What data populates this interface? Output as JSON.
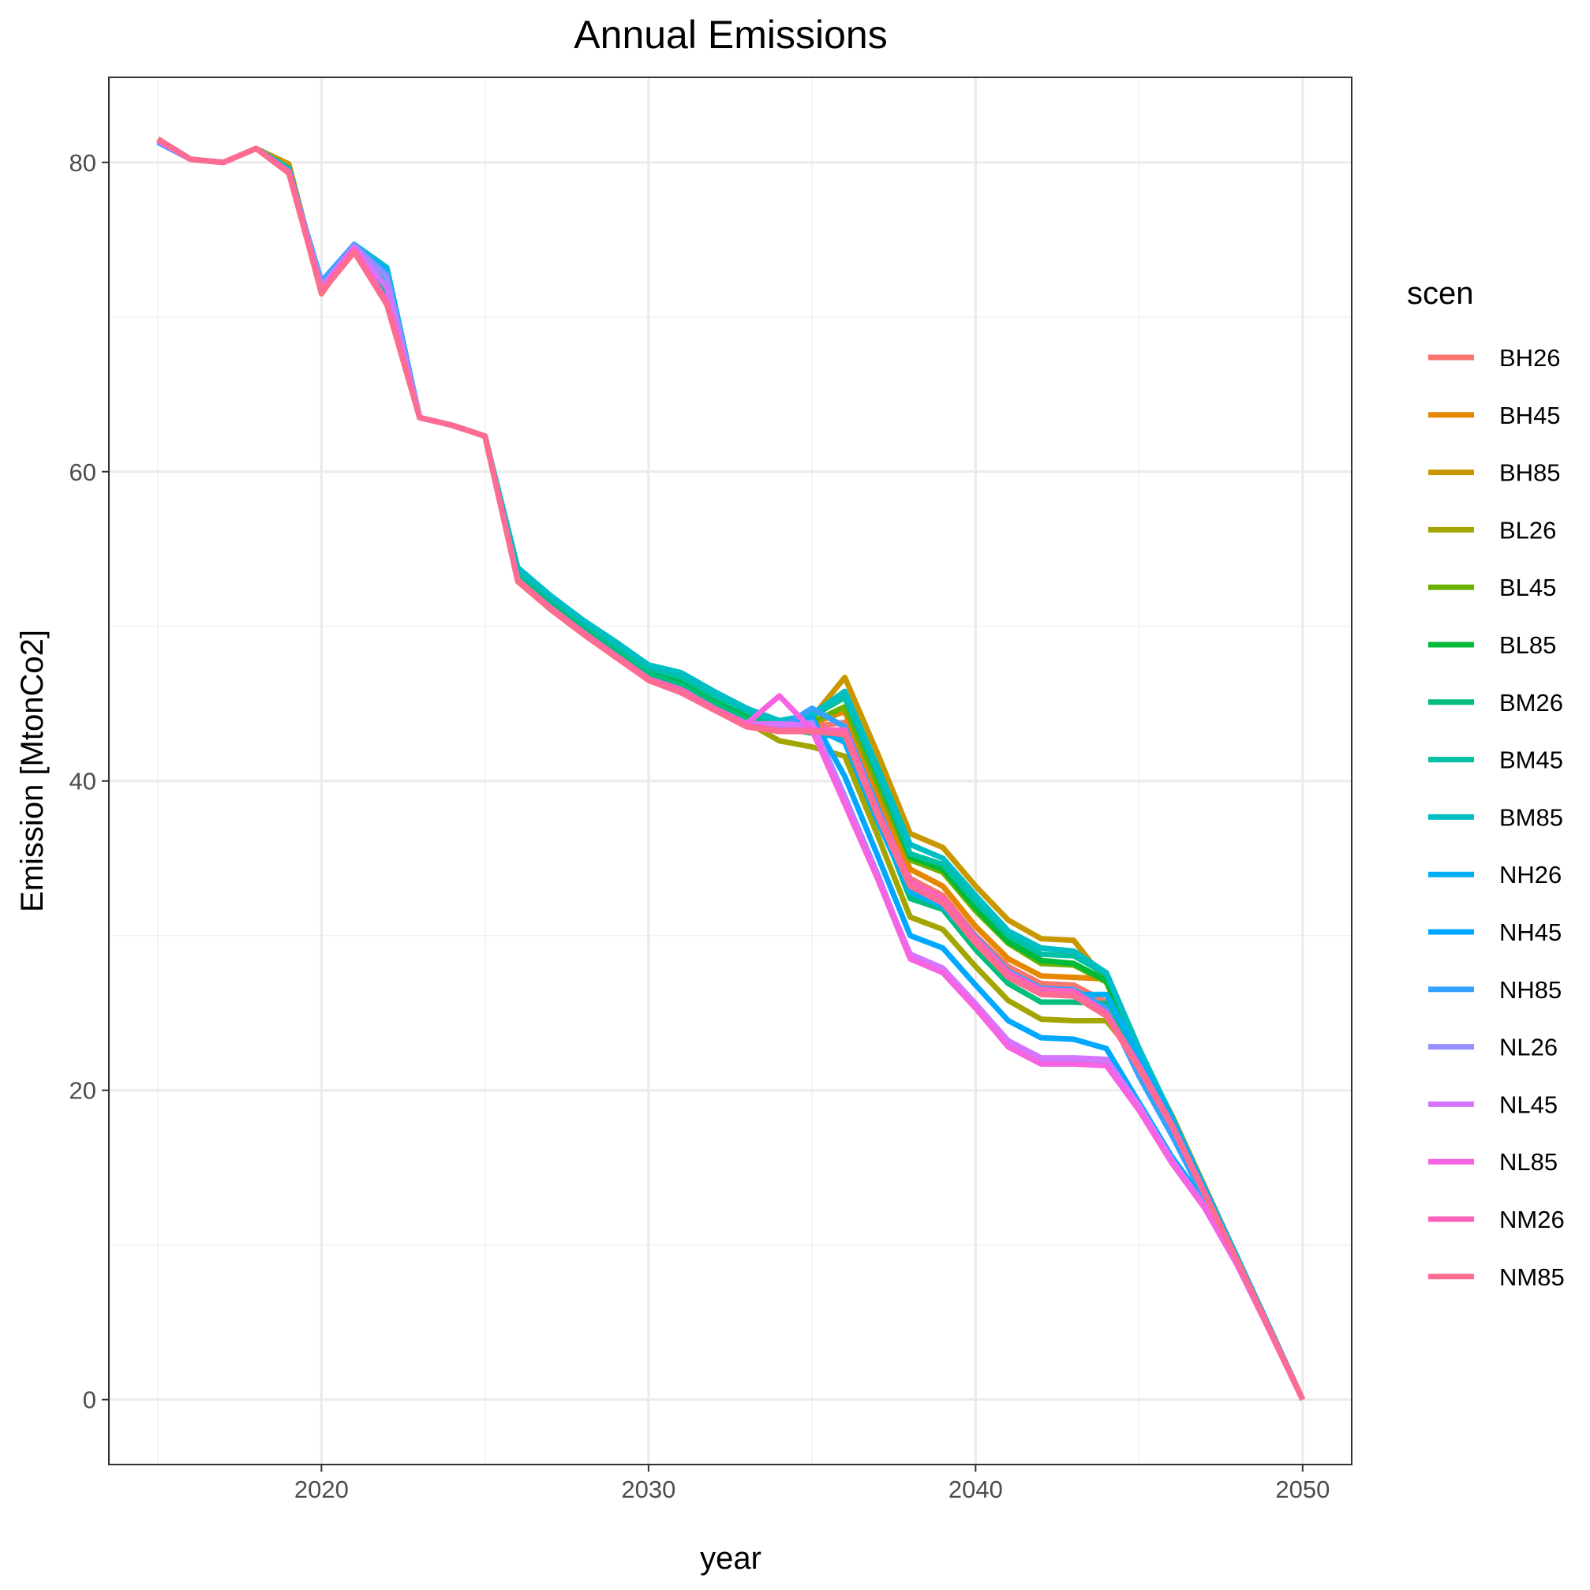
{
  "chart_data": {
    "type": "line",
    "title": "Annual Emissions",
    "xlabel": "year",
    "ylabel": "Emission [MtonCo2]",
    "xlim": [
      2013.5,
      2051.5
    ],
    "ylim": [
      -4.2,
      85.5
    ],
    "x_ticks": [
      2020,
      2030,
      2040,
      2050
    ],
    "x_tick_labels": [
      "2020",
      "2030",
      "2040",
      "2050"
    ],
    "x_minor": [
      2015,
      2025,
      2035,
      2045
    ],
    "y_ticks": [
      0,
      20,
      40,
      60,
      80
    ],
    "y_tick_labels": [
      "0",
      "20",
      "40",
      "60",
      "80"
    ],
    "y_minor": [
      10,
      30,
      50,
      70
    ],
    "grid": true,
    "legend": {
      "title": "scen",
      "position": "right"
    },
    "x": [
      2015,
      2016,
      2017,
      2018,
      2019,
      2020,
      2021,
      2022,
      2023,
      2024,
      2025,
      2026,
      2027,
      2028,
      2029,
      2030,
      2031,
      2032,
      2033,
      2034,
      2035,
      2036,
      2037,
      2038,
      2039,
      2040,
      2041,
      2042,
      2043,
      2044,
      2045,
      2046,
      2047,
      2048,
      2049,
      2050
    ],
    "series": [
      {
        "name": "BH26",
        "color": "#F8766D",
        "values": [
          81.5,
          80.2,
          80.0,
          80.9,
          79.5,
          71.5,
          74.5,
          70.8,
          63.5,
          63.0,
          62.3,
          52.9,
          51.1,
          49.5,
          48.0,
          46.6,
          45.8,
          44.6,
          43.6,
          43.2,
          43.5,
          43.8,
          38.3,
          33.7,
          32.6,
          30.0,
          28.0,
          26.9,
          26.8,
          25.7,
          22.0,
          18.1,
          13.5,
          9.2,
          4.6,
          0.0
        ]
      },
      {
        "name": "BH45",
        "color": "#E58700",
        "values": [
          81.5,
          80.2,
          80.0,
          80.9,
          79.7,
          71.6,
          74.5,
          71.0,
          63.5,
          63.0,
          62.3,
          53.2,
          51.4,
          49.8,
          48.3,
          46.8,
          46.1,
          44.9,
          43.9,
          43.5,
          43.7,
          44.5,
          39.2,
          34.3,
          33.2,
          30.6,
          28.5,
          27.4,
          27.3,
          27.2,
          22.4,
          18.4,
          13.8,
          9.2,
          4.6,
          0.0
        ]
      },
      {
        "name": "BH85",
        "color": "#C99800",
        "values": [
          81.5,
          80.2,
          80.0,
          80.9,
          79.9,
          71.8,
          74.6,
          71.2,
          63.5,
          63.0,
          62.3,
          53.4,
          51.7,
          50.1,
          48.6,
          47.0,
          46.4,
          45.2,
          44.2,
          43.7,
          44.1,
          46.7,
          41.8,
          36.6,
          35.7,
          33.2,
          31.0,
          29.8,
          29.7,
          27.0,
          22.3,
          18.1,
          13.6,
          9.1,
          4.6,
          0.0
        ]
      },
      {
        "name": "BL26",
        "color": "#A3A500",
        "values": [
          81.5,
          80.2,
          80.0,
          80.9,
          79.6,
          71.7,
          74.5,
          71.0,
          63.5,
          63.0,
          62.3,
          53.0,
          51.2,
          49.6,
          48.1,
          46.7,
          46.0,
          44.8,
          43.8,
          42.6,
          42.2,
          41.6,
          36.5,
          31.2,
          30.4,
          28.0,
          25.8,
          24.6,
          24.5,
          24.5,
          21.9,
          17.8,
          13.4,
          9.0,
          4.5,
          0.0
        ]
      },
      {
        "name": "BL45",
        "color": "#6BB100",
        "values": [
          81.5,
          80.2,
          80.0,
          80.9,
          79.6,
          71.8,
          74.5,
          71.4,
          63.5,
          63.0,
          62.3,
          53.3,
          51.5,
          49.9,
          48.4,
          46.9,
          46.3,
          45.1,
          44.1,
          43.4,
          43.8,
          44.8,
          39.8,
          34.9,
          34.1,
          31.6,
          29.5,
          28.2,
          28.1,
          27.0,
          22.3,
          18.2,
          13.6,
          9.1,
          4.6,
          0.0
        ]
      },
      {
        "name": "BL85",
        "color": "#00BA38",
        "values": [
          81.5,
          80.2,
          80.0,
          80.9,
          79.6,
          71.8,
          74.6,
          71.5,
          63.5,
          63.0,
          62.3,
          53.4,
          51.7,
          50.1,
          48.6,
          47.1,
          46.5,
          45.3,
          44.3,
          43.6,
          44.2,
          45.4,
          40.4,
          35.1,
          34.3,
          31.8,
          29.6,
          28.4,
          28.2,
          27.1,
          22.3,
          18.2,
          13.6,
          9.1,
          4.6,
          0.0
        ]
      },
      {
        "name": "BM26",
        "color": "#00BF7D",
        "values": [
          81.5,
          80.2,
          80.0,
          80.9,
          79.6,
          71.8,
          74.6,
          71.6,
          63.5,
          63.0,
          62.3,
          53.3,
          51.5,
          49.9,
          48.4,
          46.9,
          46.2,
          45.0,
          44.0,
          43.4,
          43.1,
          42.8,
          37.8,
          32.4,
          31.7,
          29.1,
          26.9,
          25.7,
          25.7,
          25.6,
          22.0,
          18.0,
          13.5,
          9.0,
          4.5,
          0.0
        ]
      },
      {
        "name": "BM45",
        "color": "#00C1A3",
        "values": [
          81.5,
          80.2,
          80.0,
          80.9,
          79.6,
          71.9,
          74.6,
          72.2,
          63.5,
          63.0,
          62.3,
          53.6,
          51.9,
          50.3,
          48.8,
          47.3,
          46.7,
          45.5,
          44.5,
          43.7,
          44.3,
          45.4,
          40.5,
          35.3,
          34.6,
          32.2,
          30.0,
          28.8,
          28.7,
          27.5,
          22.6,
          18.3,
          13.7,
          9.2,
          4.6,
          0.0
        ]
      },
      {
        "name": "BM85",
        "color": "#00BFC4",
        "values": [
          81.5,
          80.2,
          80.0,
          80.9,
          79.6,
          72.0,
          74.7,
          73.2,
          63.5,
          63.0,
          62.3,
          53.8,
          52.0,
          50.4,
          49.0,
          47.5,
          47.0,
          45.8,
          44.7,
          43.9,
          44.3,
          45.8,
          40.9,
          35.9,
          35.0,
          32.6,
          30.3,
          29.2,
          29.0,
          27.6,
          22.7,
          18.3,
          13.7,
          9.2,
          4.6,
          0.0
        ]
      },
      {
        "name": "NH26",
        "color": "#00B0F6",
        "values": [
          81.4,
          80.2,
          80.0,
          80.9,
          79.4,
          72.1,
          74.6,
          73.0,
          63.5,
          63.0,
          62.3,
          53.0,
          51.2,
          49.6,
          48.1,
          46.6,
          45.9,
          44.7,
          43.7,
          43.2,
          43.5,
          42.5,
          37.4,
          32.8,
          31.9,
          29.6,
          27.3,
          26.3,
          26.2,
          26.2,
          22.2,
          18.1,
          13.6,
          9.1,
          4.6,
          0.0
        ]
      },
      {
        "name": "NH45",
        "color": "#00A9FF",
        "values": [
          81.3,
          80.2,
          80.0,
          80.9,
          79.4,
          72.2,
          74.6,
          72.9,
          63.5,
          63.0,
          62.3,
          53.0,
          51.2,
          49.6,
          48.1,
          46.6,
          45.9,
          44.7,
          43.7,
          43.3,
          44.1,
          40.3,
          35.2,
          30.0,
          29.2,
          26.8,
          24.5,
          23.4,
          23.3,
          22.7,
          19.2,
          15.7,
          12.8,
          8.9,
          4.5,
          0.0
        ]
      },
      {
        "name": "NH85",
        "color": "#35A2FF",
        "values": [
          81.3,
          80.2,
          80.0,
          80.9,
          79.4,
          72.3,
          74.7,
          72.8,
          63.5,
          63.0,
          62.3,
          53.0,
          51.2,
          49.6,
          48.1,
          46.6,
          45.9,
          44.7,
          43.7,
          43.4,
          44.7,
          43.5,
          38.3,
          33.2,
          32.3,
          29.9,
          27.7,
          26.6,
          26.5,
          25.3,
          20.9,
          17.1,
          13.0,
          9.0,
          4.5,
          0.0
        ]
      },
      {
        "name": "NL26",
        "color": "#9590FF",
        "values": [
          81.4,
          80.2,
          80.0,
          80.9,
          79.4,
          72.0,
          74.6,
          72.6,
          63.5,
          63.0,
          62.3,
          53.0,
          51.2,
          49.6,
          48.1,
          46.6,
          45.9,
          44.7,
          43.7,
          43.3,
          43.8,
          39.0,
          34.0,
          28.6,
          27.8,
          25.5,
          23.2,
          22.0,
          21.9,
          21.9,
          19.0,
          15.5,
          12.5,
          8.8,
          4.4,
          0.0
        ]
      },
      {
        "name": "NL45",
        "color": "#D575FE",
        "values": [
          81.4,
          80.2,
          80.0,
          80.9,
          79.4,
          71.9,
          74.5,
          71.9,
          63.5,
          63.0,
          62.3,
          53.0,
          51.2,
          49.6,
          48.1,
          46.6,
          45.9,
          44.7,
          43.7,
          43.7,
          43.6,
          38.8,
          33.8,
          28.8,
          27.9,
          25.6,
          23.2,
          22.1,
          22.1,
          22.0,
          19.0,
          15.5,
          12.5,
          8.8,
          4.4,
          0.0
        ]
      },
      {
        "name": "NL85",
        "color": "#F763E0",
        "values": [
          81.5,
          80.2,
          80.0,
          80.9,
          79.4,
          71.7,
          74.4,
          71.0,
          63.5,
          63.0,
          62.3,
          53.0,
          51.2,
          49.6,
          48.1,
          46.6,
          45.9,
          44.7,
          43.7,
          45.5,
          43.3,
          38.5,
          33.7,
          28.5,
          27.6,
          25.3,
          22.8,
          21.7,
          21.7,
          21.6,
          18.7,
          15.3,
          12.4,
          8.7,
          4.4,
          0.0
        ]
      },
      {
        "name": "NM26",
        "color": "#FF62BC",
        "values": [
          81.5,
          80.2,
          80.0,
          80.9,
          79.4,
          71.7,
          74.3,
          70.9,
          63.5,
          63.0,
          62.3,
          53.0,
          51.2,
          49.6,
          48.1,
          46.6,
          45.9,
          44.7,
          43.6,
          43.3,
          43.3,
          43.3,
          38.0,
          33.5,
          32.4,
          29.8,
          27.6,
          26.5,
          26.4,
          25.0,
          21.6,
          17.8,
          13.4,
          9.0,
          4.5,
          0.0
        ]
      },
      {
        "name": "NM85",
        "color": "#FF6C91",
        "values": [
          81.5,
          80.2,
          80.0,
          80.9,
          79.3,
          71.6,
          74.2,
          70.8,
          63.5,
          63.0,
          62.3,
          53.0,
          51.1,
          49.5,
          48.0,
          46.5,
          45.7,
          44.6,
          43.5,
          43.2,
          43.2,
          43.0,
          37.8,
          33.2,
          32.1,
          29.5,
          27.3,
          26.2,
          26.1,
          24.8,
          21.4,
          17.7,
          13.3,
          9.0,
          4.5,
          0.0
        ]
      }
    ]
  }
}
